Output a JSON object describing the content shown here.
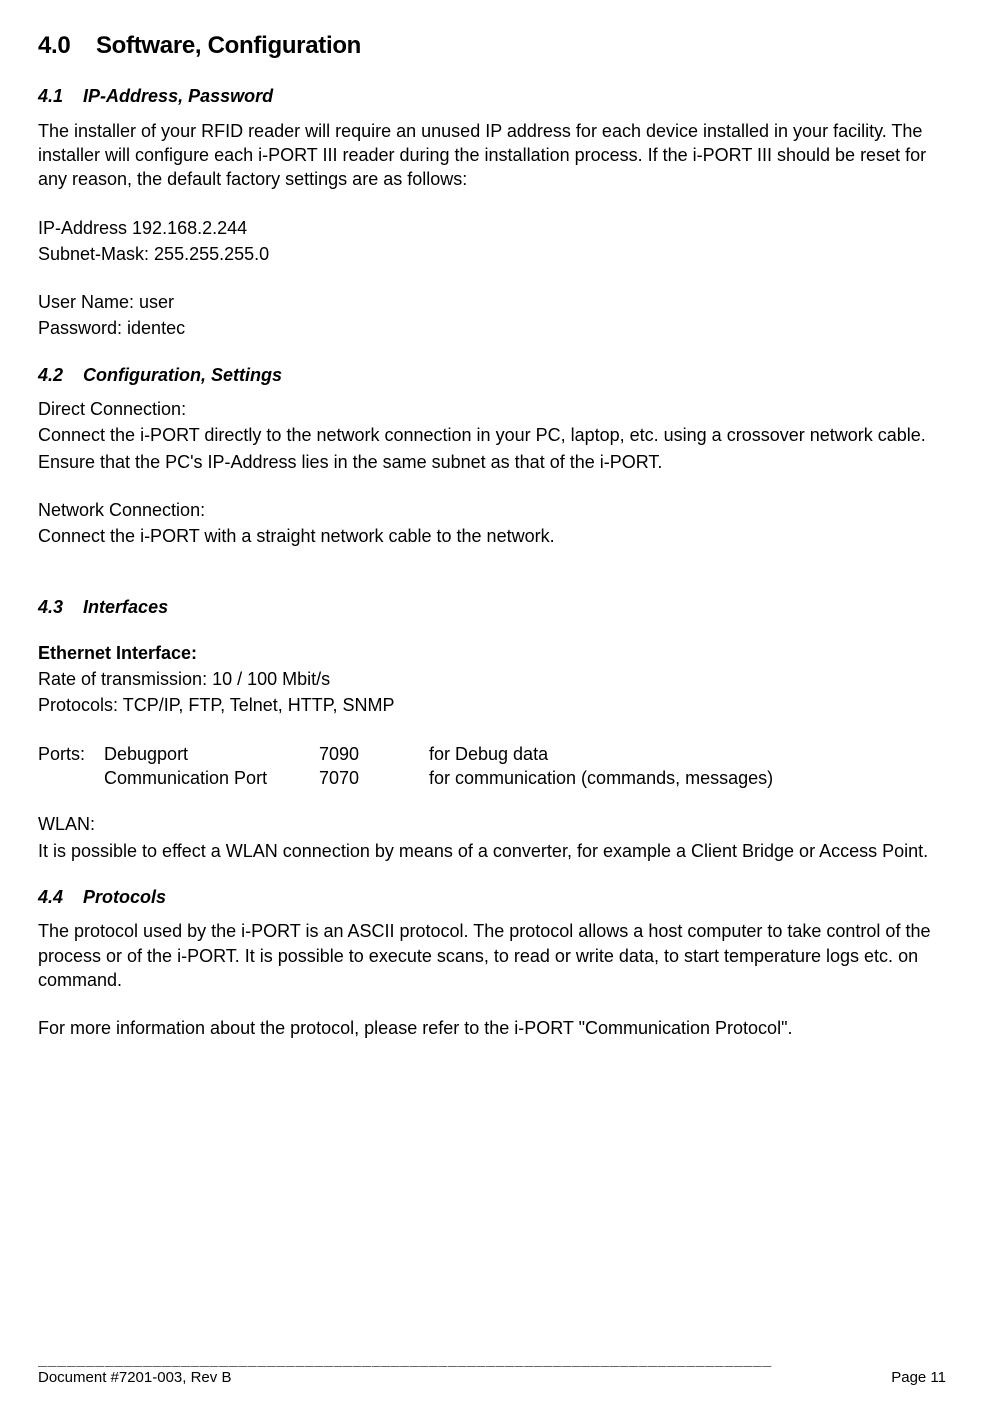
{
  "section": {
    "number": "4.0",
    "title": "Software, Configuration"
  },
  "s41": {
    "number": "4.1",
    "title": "IP-Address, Password",
    "intro": "The installer of your RFID reader will require an unused IP address for each device installed in your facility.  The installer will configure each i-PORT III reader during the installation process.  If the i-PORT III should be reset for any reason, the default factory settings are as follows:",
    "ip_line": "IP-Address 192.168.2.244",
    "subnet_line": "Subnet-Mask: 255.255.255.0",
    "user_line": "User Name: user",
    "pw_line": "Password: identec"
  },
  "s42": {
    "number": "4.2",
    "title": "Configuration, Settings",
    "direct_label": "Direct Connection:",
    "direct_p1": "Connect the i-PORT directly to the network connection in your PC, laptop, etc. using a crossover network cable.",
    "direct_p2": "Ensure that the PC's IP-Address lies in the same subnet as that of the i-PORT.",
    "net_label": "Network Connection:",
    "net_p1": "Connect the i-PORT with a straight network cable to the network."
  },
  "s43": {
    "number": "4.3",
    "title": "Interfaces",
    "eth_label": "Ethernet Interface:",
    "eth_rate": "Rate of transmission: 10 / 100 Mbit/s",
    "eth_protocols": "Protocols: TCP/IP, FTP, Telnet, HTTP, SNMP",
    "ports_label": "Ports:",
    "ports": [
      {
        "name": "Debugport",
        "num": "7090",
        "desc": "for Debug data"
      },
      {
        "name": "Communication Port",
        "num": "7070",
        "desc": "for communication (commands, messages)"
      }
    ],
    "wlan_label": "WLAN:",
    "wlan_text": "It is possible to effect a WLAN connection by means of a converter, for example a Client Bridge or Access Point."
  },
  "s44": {
    "number": "4.4",
    "title": "Protocols",
    "p1": "The protocol used by the i-PORT is an ASCII protocol. The protocol allows a host computer to take control of the process or of the i-PORT. It is possible to execute scans, to read or write data, to start temperature logs etc. on command.",
    "p2": "For more information about the protocol, please refer to the i-PORT \"Communication Protocol\"."
  },
  "footer": {
    "line": "_____________________________________________________________________________",
    "doc": "Document  #7201-003, Rev B",
    "page": "Page 11"
  }
}
